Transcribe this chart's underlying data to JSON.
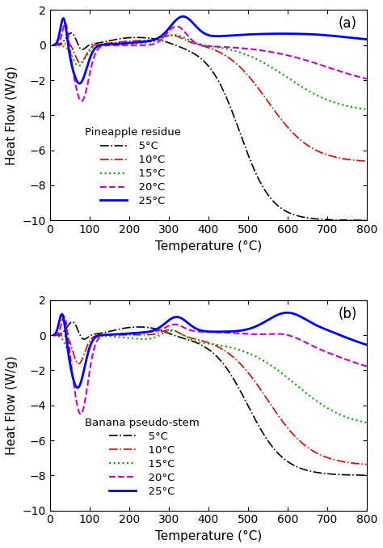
{
  "title_a": "(a)",
  "title_b": "(b)",
  "xlabel": "Temperature (°C)",
  "ylabel": "Heat Flow (W/g)",
  "xlim": [
    0,
    800
  ],
  "ylim": [
    -10,
    2
  ],
  "yticks": [
    -10,
    -8,
    -6,
    -4,
    -2,
    0,
    2
  ],
  "xticks": [
    0,
    100,
    200,
    300,
    400,
    500,
    600,
    700,
    800
  ],
  "legend_title_a": "Pineapple residue",
  "legend_title_b": "Banana pseudo-stem",
  "colors": {
    "5C": "#000000",
    "10C": "#e60000",
    "15C": "#00aa00",
    "20C": "#cc00cc",
    "25C": "#0000ff"
  },
  "labels": {
    "5C": "  5°C",
    "10C": "  10°C",
    "15C": "  15°C",
    "20C": "  20°C",
    "25C": "  25°C"
  }
}
